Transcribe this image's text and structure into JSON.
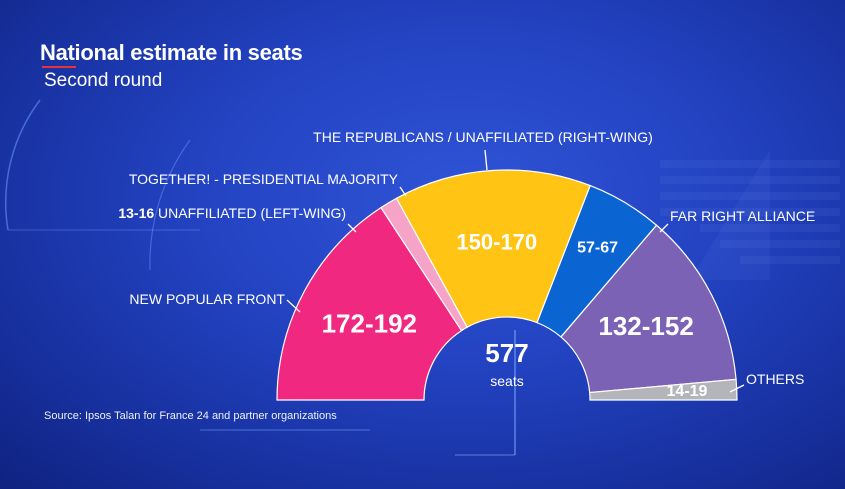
{
  "header": {
    "title": "National estimate in seats",
    "subtitle": "Second round"
  },
  "source": "Source: Ipsos Talan for France 24 and partner organizations",
  "chart_data": {
    "type": "pie",
    "subtype": "semicircle-hemicycle",
    "title": "National estimate in seats",
    "subtitle": "Second round",
    "total": {
      "value": "577",
      "unit": "seats"
    },
    "order": "left-to-right",
    "series": [
      {
        "name": "NEW POPULAR FRONT",
        "range": "172-192",
        "low": 172,
        "high": 192,
        "color": "#f0287f"
      },
      {
        "name": "UNAFFILIATED (LEFT-WING)",
        "range": "13-16",
        "low": 13,
        "high": 16,
        "color": "#f5a3c7"
      },
      {
        "name": "TOGETHER! - PRESIDENTIAL MAJORITY",
        "range": "150-170",
        "low": 150,
        "high": 170,
        "color": "#ffc414"
      },
      {
        "name": "THE REPUBLICANS / UNAFFILIATED (RIGHT-WING)",
        "range": "57-67",
        "low": 57,
        "high": 67,
        "color": "#0a64d2"
      },
      {
        "name": "FAR RIGHT ALLIANCE",
        "range": "132-152",
        "low": 132,
        "high": 152,
        "color": "#7b62b5"
      },
      {
        "name": "OTHERS",
        "range": "14-19",
        "low": 14,
        "high": 19,
        "color": "#b3b5bb"
      }
    ]
  }
}
